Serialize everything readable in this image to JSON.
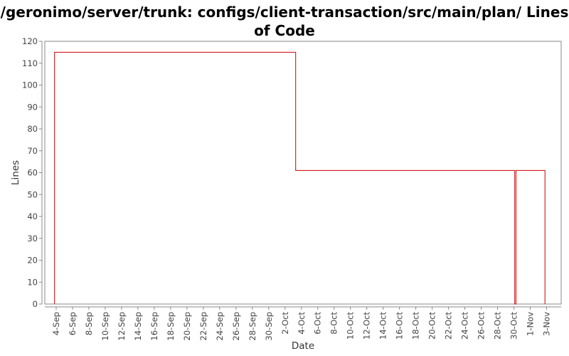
{
  "chart_data": {
    "type": "line",
    "title": "/geronimo/server/trunk: configs/client-transaction/src/main/plan/ Lines of Code",
    "xlabel": "Date",
    "ylabel": "Lines",
    "ylim": [
      0,
      120
    ],
    "yticks": [
      0,
      10,
      20,
      30,
      40,
      50,
      60,
      70,
      80,
      90,
      100,
      110,
      120
    ],
    "xlim": [
      0,
      61
    ],
    "xticks": [
      {
        "label": "4-Sep",
        "day": 0
      },
      {
        "label": "6-Sep",
        "day": 2
      },
      {
        "label": "8-Sep",
        "day": 4
      },
      {
        "label": "10-Sep",
        "day": 6
      },
      {
        "label": "12-Sep",
        "day": 8
      },
      {
        "label": "14-Sep",
        "day": 10
      },
      {
        "label": "16-Sep",
        "day": 12
      },
      {
        "label": "18-Sep",
        "day": 14
      },
      {
        "label": "20-Sep",
        "day": 16
      },
      {
        "label": "22-Sep",
        "day": 18
      },
      {
        "label": "24-Sep",
        "day": 20
      },
      {
        "label": "26-Sep",
        "day": 22
      },
      {
        "label": "28-Sep",
        "day": 24
      },
      {
        "label": "30-Sep",
        "day": 26
      },
      {
        "label": "2-Oct",
        "day": 28
      },
      {
        "label": "4-Oct",
        "day": 30
      },
      {
        "label": "6-Oct",
        "day": 32
      },
      {
        "label": "8-Oct",
        "day": 34
      },
      {
        "label": "10-Oct",
        "day": 36
      },
      {
        "label": "12-Oct",
        "day": 38
      },
      {
        "label": "14-Oct",
        "day": 40
      },
      {
        "label": "16-Oct",
        "day": 42
      },
      {
        "label": "18-Oct",
        "day": 44
      },
      {
        "label": "20-Oct",
        "day": 46
      },
      {
        "label": "22-Oct",
        "day": 48
      },
      {
        "label": "24-Oct",
        "day": 50
      },
      {
        "label": "26-Oct",
        "day": 52
      },
      {
        "label": "28-Oct",
        "day": 54
      },
      {
        "label": "30-Oct",
        "day": 56
      },
      {
        "label": "1-Nov",
        "day": 58
      },
      {
        "label": "3-Nov",
        "day": 60
      }
    ],
    "series": [
      {
        "name": "",
        "color": "#cc0000",
        "step": true,
        "points": [
          {
            "x": -0.2,
            "y": 0
          },
          {
            "x": -0.2,
            "y": 115
          },
          {
            "x": 29.3,
            "y": 115
          },
          {
            "x": 29.3,
            "y": 61
          },
          {
            "x": 56.1,
            "y": 61
          },
          {
            "x": 56.1,
            "y": 0
          },
          {
            "x": 56.25,
            "y": 0
          },
          {
            "x": 56.25,
            "y": 61
          },
          {
            "x": 59.8,
            "y": 61
          },
          {
            "x": 59.8,
            "y": 0
          }
        ]
      }
    ],
    "grid": false
  }
}
